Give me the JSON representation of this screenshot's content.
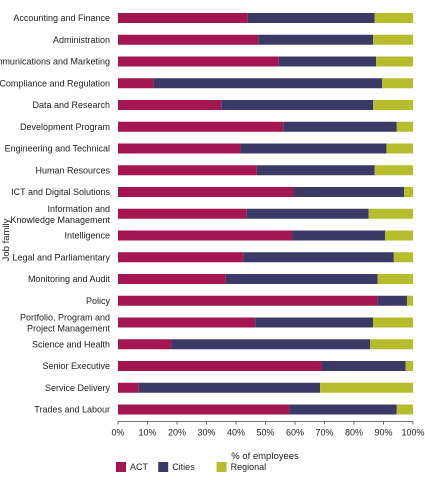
{
  "chart_data": {
    "type": "bar",
    "orientation": "horizontal",
    "stacked": true,
    "ylabel": "Job family",
    "xlabel": "% of employees",
    "xlim": [
      0,
      100
    ],
    "xticks": [
      "0%",
      "10%",
      "20%",
      "30%",
      "40%",
      "50%",
      "60%",
      "70%",
      "80%",
      "90%",
      "100%"
    ],
    "grid": false,
    "legend_position": "bottom-left",
    "categories": [
      [
        "Accounting and Finance"
      ],
      [
        "Administration"
      ],
      [
        "Communications and Marketing"
      ],
      [
        "Compliance and Regulation"
      ],
      [
        "Data and Research"
      ],
      [
        "Development Program"
      ],
      [
        "Engineering and Technical"
      ],
      [
        "Human Resources"
      ],
      [
        "ICT and Digital Solutions"
      ],
      [
        "Information and",
        "Knowledge Management"
      ],
      [
        "Intelligence"
      ],
      [
        "Legal and Parliamentary"
      ],
      [
        "Monitoring and Audit"
      ],
      [
        "Policy"
      ],
      [
        "Portfolio, Program and",
        "Project Management"
      ],
      [
        "Science and Health"
      ],
      [
        "Senior Executive"
      ],
      [
        "Service Delivery"
      ],
      [
        "Trades and Labour"
      ]
    ],
    "series": [
      {
        "name": "ACT",
        "color": "#a3164f",
        "values": [
          44,
          47.5,
          54.5,
          12,
          35,
          56,
          41.5,
          47,
          59.5,
          43.5,
          59,
          42.5,
          36.5,
          88,
          46.5,
          18,
          69,
          7,
          58
        ]
      },
      {
        "name": "Cities",
        "color": "#3b3a66",
        "values": [
          43,
          39,
          33,
          77.5,
          51.5,
          38.5,
          49.5,
          40,
          37.5,
          41.5,
          31.5,
          51,
          51.5,
          10,
          40,
          67.5,
          28.5,
          61.5,
          36.5
        ]
      },
      {
        "name": "Regional",
        "color": "#b5bd2d",
        "values": [
          13,
          13.5,
          12.5,
          10.5,
          13.5,
          5.5,
          9,
          13,
          3,
          15,
          9.5,
          6.5,
          12,
          2,
          13.5,
          14.5,
          2.5,
          31.5,
          5.5
        ]
      }
    ]
  }
}
